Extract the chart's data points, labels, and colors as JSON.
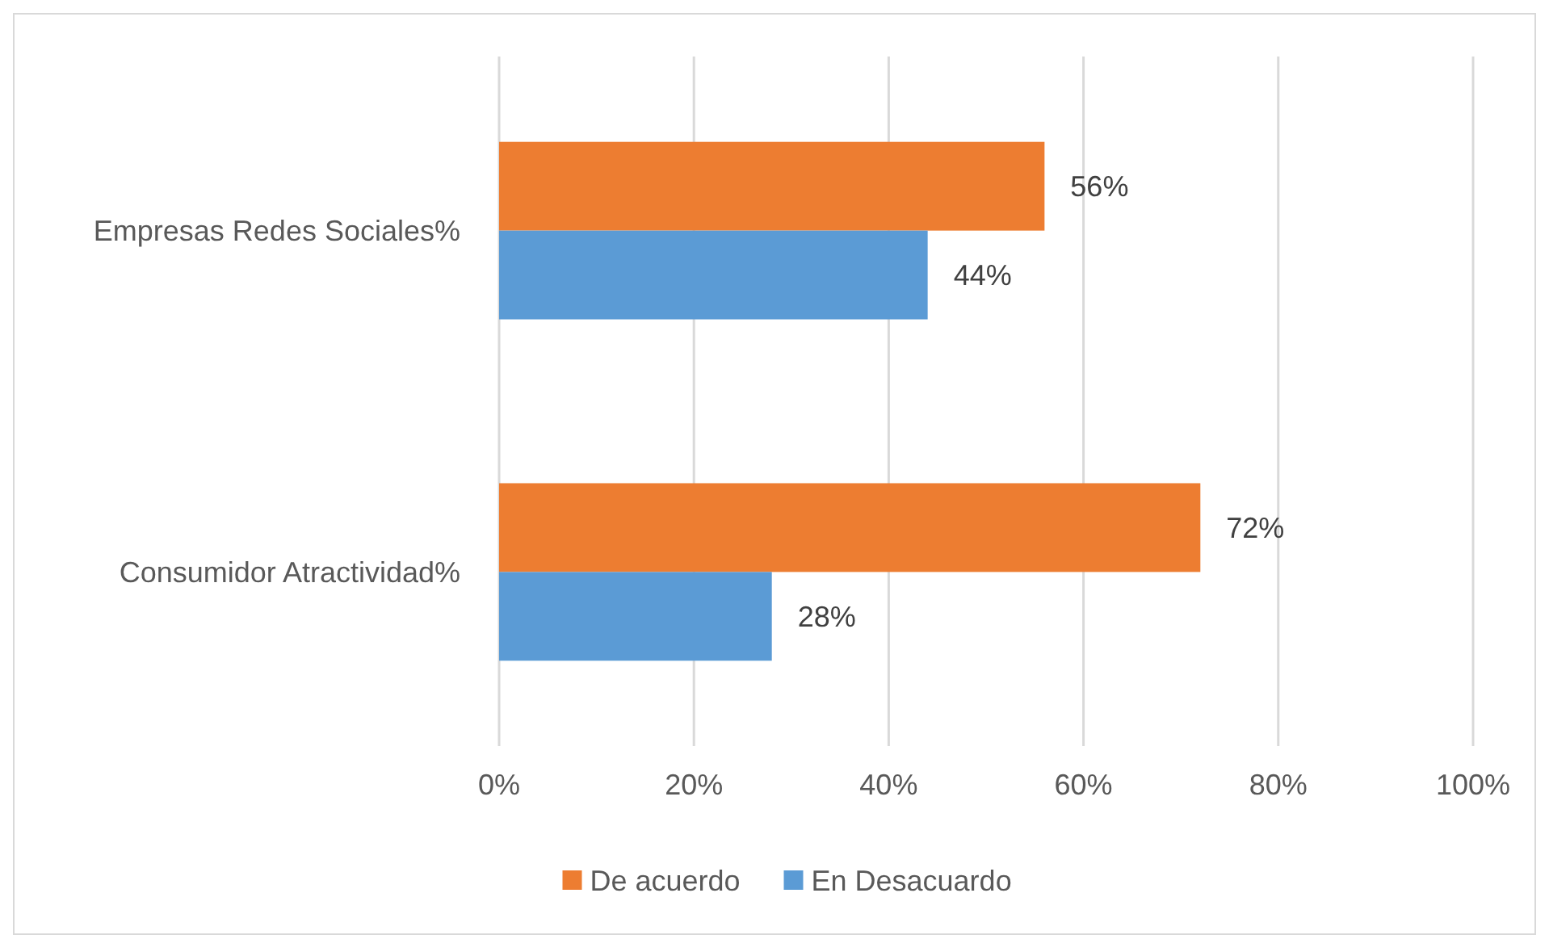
{
  "chart_data": {
    "type": "bar",
    "orientation": "horizontal",
    "categories": [
      "Empresas Redes Sociales%",
      "Consumidor Atractividad%"
    ],
    "series": [
      {
        "name": "De acuerdo",
        "color": "#ed7d31",
        "values": [
          56,
          72
        ],
        "value_labels": [
          "56%",
          "72%"
        ]
      },
      {
        "name": "En Desacuardo",
        "color": "#5b9bd5",
        "values": [
          44,
          28
        ],
        "value_labels": [
          "44%",
          "28%"
        ]
      }
    ],
    "xlim": [
      0,
      100
    ],
    "xticks": [
      {
        "value": 0,
        "label": "0%"
      },
      {
        "value": 20,
        "label": "20%"
      },
      {
        "value": 40,
        "label": "40%"
      },
      {
        "value": 60,
        "label": "60%"
      },
      {
        "value": 80,
        "label": "80%"
      },
      {
        "value": 100,
        "label": "100%"
      }
    ],
    "grid": "x",
    "legend": "bottom"
  }
}
